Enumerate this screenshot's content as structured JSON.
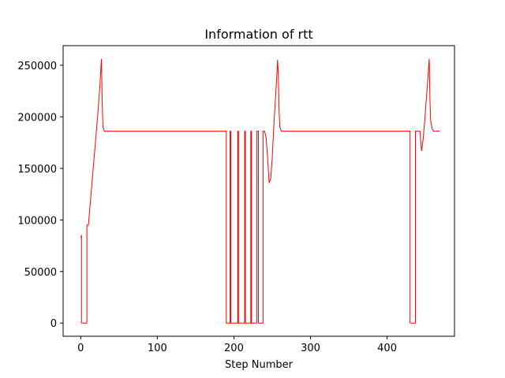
{
  "chart_data": {
    "type": "line",
    "title": "Information of rtt",
    "xlabel": "Step Number",
    "ylabel": "",
    "xlim": [
      -23,
      488
    ],
    "ylim": [
      -12800,
      269000
    ],
    "grid": false,
    "legend": "none",
    "x_ticks": [
      0,
      100,
      200,
      300,
      400
    ],
    "y_ticks": [
      0,
      50000,
      100000,
      150000,
      200000,
      250000
    ],
    "series": [
      {
        "color": "#ff0000",
        "points": [
          [
            0,
            83000
          ],
          [
            1,
            85000
          ],
          [
            1,
            0
          ],
          [
            8,
            0
          ],
          [
            8,
            95000
          ],
          [
            10,
            95000
          ],
          [
            14,
            130000
          ],
          [
            18,
            165000
          ],
          [
            22,
            200000
          ],
          [
            25,
            230000
          ],
          [
            27,
            256000
          ],
          [
            28,
            215000
          ],
          [
            29,
            190000
          ],
          [
            31,
            186000
          ],
          [
            190,
            186000
          ],
          [
            190,
            0
          ],
          [
            195,
            0
          ],
          [
            195,
            186000
          ],
          [
            196,
            186000
          ],
          [
            196,
            0
          ],
          [
            205,
            0
          ],
          [
            205,
            186000
          ],
          [
            206,
            186000
          ],
          [
            206,
            0
          ],
          [
            214,
            0
          ],
          [
            214,
            186000
          ],
          [
            215,
            186000
          ],
          [
            215,
            0
          ],
          [
            222,
            0
          ],
          [
            222,
            186000
          ],
          [
            223,
            186000
          ],
          [
            223,
            0
          ],
          [
            230,
            0
          ],
          [
            230,
            186000
          ],
          [
            231,
            186000
          ],
          [
            232,
            186000
          ],
          [
            232,
            0
          ],
          [
            238,
            0
          ],
          [
            238,
            186000
          ],
          [
            240,
            186000
          ],
          [
            242,
            180000
          ],
          [
            244,
            160000
          ],
          [
            246,
            136000
          ],
          [
            248,
            140000
          ],
          [
            250,
            160000
          ],
          [
            252,
            190000
          ],
          [
            254,
            215000
          ],
          [
            256,
            240000
          ],
          [
            257,
            255000
          ],
          [
            258,
            240000
          ],
          [
            259,
            205000
          ],
          [
            260,
            190000
          ],
          [
            262,
            186000
          ],
          [
            430,
            186000
          ],
          [
            430,
            0
          ],
          [
            437,
            0
          ],
          [
            437,
            186000
          ],
          [
            443,
            186000
          ],
          [
            444,
            175000
          ],
          [
            445,
            167000
          ],
          [
            447,
            178000
          ],
          [
            449,
            195000
          ],
          [
            451,
            215000
          ],
          [
            453,
            235000
          ],
          [
            455,
            256000
          ],
          [
            456,
            215000
          ],
          [
            457,
            195000
          ],
          [
            459,
            188000
          ],
          [
            461,
            186000
          ],
          [
            469,
            186000
          ]
        ]
      }
    ]
  }
}
